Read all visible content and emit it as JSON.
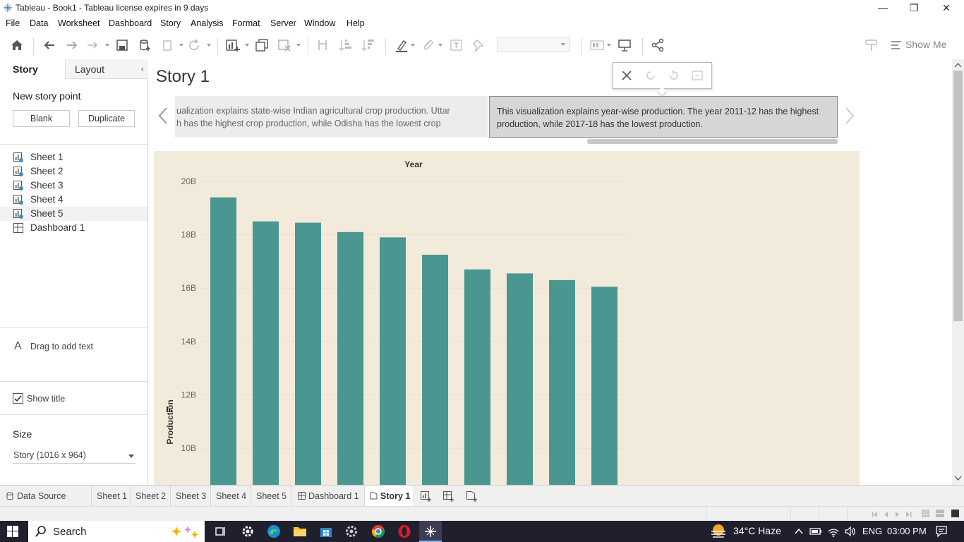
{
  "window": {
    "title": "Tableau - Book1 - Tableau license expires in 9 days",
    "minimize": "—",
    "restore": "❐",
    "close": "✕"
  },
  "menu": [
    "File",
    "Data",
    "Worksheet",
    "Dashboard",
    "Story",
    "Analysis",
    "Format",
    "Server",
    "Window",
    "Help"
  ],
  "toolbar": {
    "show_me": "Show Me"
  },
  "left_pane": {
    "tabs": {
      "story": "Story",
      "layout": "Layout"
    },
    "new_story_point": "New story point",
    "blank": "Blank",
    "duplicate": "Duplicate",
    "sheets": [
      {
        "name": "Sheet 1",
        "type": "sheet"
      },
      {
        "name": "Sheet 2",
        "type": "sheet"
      },
      {
        "name": "Sheet 3",
        "type": "sheet"
      },
      {
        "name": "Sheet 4",
        "type": "sheet"
      },
      {
        "name": "Sheet 5",
        "type": "sheet"
      },
      {
        "name": "Dashboard 1",
        "type": "dashboard"
      }
    ],
    "drag_text": "Drag to add text",
    "show_title": "Show title",
    "show_title_checked": true,
    "size_heading": "Size",
    "size_value": "Story (1016 x 964)"
  },
  "story": {
    "title": "Story 1",
    "points": [
      {
        "text_line1": "ualization explains state-wise Indian agricultural crop production. Uttar",
        "text_line2": "h has the highest crop production, while Odisha has the lowest crop"
      },
      {
        "text_line1": "This visualization explains year-wise production. The year 2011-12 has the highest",
        "text_line2": "production, while 2017-18 has the lowest production."
      }
    ]
  },
  "chart_data": {
    "type": "bar",
    "title": "Year",
    "ylabel": "Production",
    "ylim": [
      9,
      21
    ],
    "yticks": [
      "10B",
      "12B",
      "14B",
      "16B",
      "18B",
      "20B"
    ],
    "ytick_values": [
      10,
      12,
      14,
      16,
      18,
      20
    ],
    "values": [
      19.4,
      18.5,
      18.45,
      18.1,
      17.9,
      17.25,
      16.7,
      16.55,
      16.3,
      16.05
    ],
    "bar_color": "#4a9690",
    "background": "#f2eadb"
  },
  "tabs": {
    "data_source": "Data Source",
    "sheets": [
      "Sheet 1",
      "Sheet 2",
      "Sheet 3",
      "Sheet 4",
      "Sheet 5"
    ],
    "dashboard": "Dashboard 1",
    "story": "Story 1"
  },
  "taskbar": {
    "search": "Search",
    "weather": "34°C  Haze",
    "lang": "ENG",
    "time": "03:00 PM"
  }
}
